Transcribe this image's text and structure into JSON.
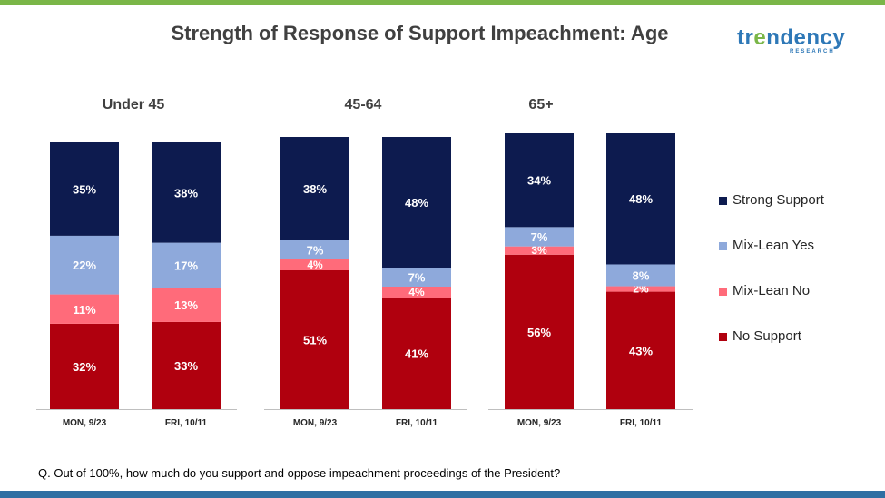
{
  "title": "Strength of Response of Support Impeachment: Age",
  "logo": {
    "main_left": "tr",
    "main_o": "e",
    "main_right": "ndency",
    "sub": "RESEARCH"
  },
  "question": "Q. Out of 100%, how much do you support and oppose impeachment proceedings of the President?",
  "colors": {
    "Strong Support": "#0d1b4f",
    "Mix-Lean Yes": "#8ea9db",
    "Mix-Lean No": "#ff6b7a",
    "No Support": "#b0000e"
  },
  "chart_data": {
    "type": "bar",
    "stacked": true,
    "title": "Strength of Response of Support Impeachment: Age",
    "series_order": [
      "No Support",
      "Mix-Lean No",
      "Mix-Lean Yes",
      "Strong Support"
    ],
    "legend": [
      "Strong Support",
      "Mix-Lean Yes",
      "Mix-Lean No",
      "No Support"
    ],
    "groups": [
      {
        "name": "Under 45",
        "bars": [
          {
            "label": "MON, 9/23",
            "values": {
              "No Support": 32,
              "Mix-Lean No": 11,
              "Mix-Lean Yes": 22,
              "Strong Support": 35
            }
          },
          {
            "label": "FRI, 10/11",
            "values": {
              "No Support": 33,
              "Mix-Lean No": 13,
              "Mix-Lean Yes": 17,
              "Strong Support": 38
            }
          }
        ]
      },
      {
        "name": "45-64",
        "bars": [
          {
            "label": "MON, 9/23",
            "values": {
              "No Support": 51,
              "Mix-Lean No": 4,
              "Mix-Lean Yes": 7,
              "Strong Support": 38
            }
          },
          {
            "label": "FRI, 10/11",
            "values": {
              "No Support": 41,
              "Mix-Lean No": 4,
              "Mix-Lean Yes": 7,
              "Strong Support": 48
            }
          }
        ]
      },
      {
        "name": "65+",
        "bars": [
          {
            "label": "MON, 9/23",
            "values": {
              "No Support": 56,
              "Mix-Lean No": 3,
              "Mix-Lean Yes": 7,
              "Strong Support": 34
            }
          },
          {
            "label": "FRI, 10/11",
            "values": {
              "No Support": 43,
              "Mix-Lean No": 2,
              "Mix-Lean Yes": 8,
              "Strong Support": 48
            }
          }
        ]
      }
    ]
  }
}
